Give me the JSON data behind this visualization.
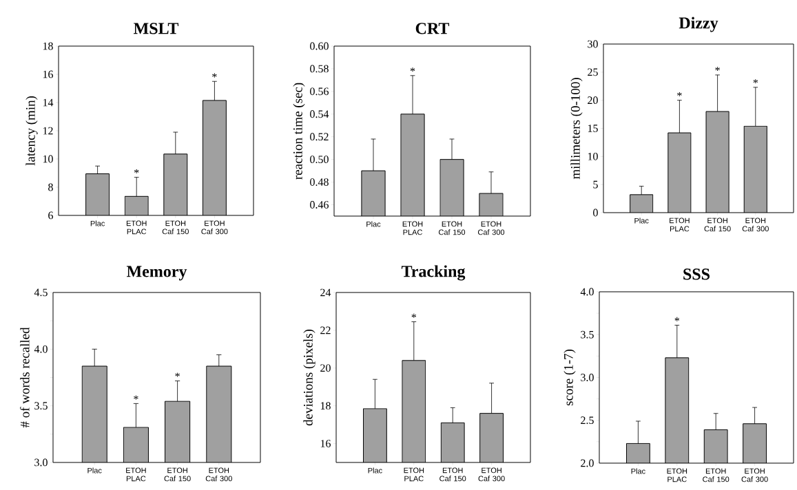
{
  "chart_data": [
    {
      "type": "bar",
      "title": "MSLT",
      "ylabel": "latency (min)",
      "categories": [
        "Plac",
        "ETOH PLAC",
        "ETOH Caf 150",
        "ETOH Caf 300"
      ],
      "values": [
        8.95,
        7.35,
        10.35,
        14.15
      ],
      "errors": [
        [
          8.95,
          9.5
        ],
        [
          7.35,
          8.7
        ],
        [
          10.35,
          11.9
        ],
        [
          14.15,
          15.5
        ]
      ],
      "color": "#a0a0a0",
      "ylim": [
        6,
        18
      ],
      "yticks": [
        6,
        8,
        10,
        12,
        14,
        16,
        18
      ],
      "annotations": [
        {
          "text": "*",
          "x": "ETOH PLAC",
          "y": 8.7
        },
        {
          "text": "*",
          "x": "ETOH Caf 300",
          "y": 15.5
        }
      ]
    },
    {
      "type": "bar",
      "title": "CRT",
      "ylabel": "reaction time (sec)",
      "categories": [
        "Plac",
        "ETOH PLAC",
        "ETOH Caf 150",
        "ETOH Caf 300"
      ],
      "values": [
        0.49,
        0.54,
        0.5,
        0.47
      ],
      "errors": [
        [
          0.49,
          0.518
        ],
        [
          0.54,
          0.574
        ],
        [
          0.5,
          0.518
        ],
        [
          0.47,
          0.489
        ]
      ],
      "color": "#a0a0a0",
      "ylim": [
        0.45,
        0.6
      ],
      "yticks": [
        0.46,
        0.48,
        {
          "value": 0.5,
          "label": "0.50"
        },
        0.52,
        0.54,
        0.56,
        0.58,
        {
          "value": 0.6,
          "label": "0.60"
        }
      ],
      "annotations": [
        {
          "text": "*",
          "x": "ETOH PLAC",
          "y": 0.574
        }
      ]
    },
    {
      "type": "bar",
      "title": "Dizzy",
      "ylabel": "millimeters (0-100)",
      "categories": [
        "Plac",
        "ETOH PLAC",
        "ETOH Caf 150",
        "ETOH Caf 300"
      ],
      "values": [
        3.2,
        14.2,
        18.0,
        15.4
      ],
      "errors": [
        [
          3.2,
          4.7
        ],
        [
          14.2,
          20.0
        ],
        [
          18.0,
          24.5
        ],
        [
          15.4,
          22.3
        ]
      ],
      "color": "#a0a0a0",
      "ylim": [
        0,
        30
      ],
      "yticks": [
        0,
        5,
        10,
        15,
        20,
        25,
        30
      ],
      "annotations": [
        {
          "text": "*",
          "x": "ETOH PLAC",
          "y": 20.0
        },
        {
          "text": "*",
          "x": "ETOH Caf 150",
          "y": 24.5
        },
        {
          "text": "*",
          "x": "ETOH Caf 300",
          "y": 22.3
        }
      ]
    },
    {
      "type": "bar",
      "title": "Memory",
      "ylabel": "# of words recalled",
      "categories": [
        "Plac",
        "ETOH PLAC",
        "ETOH Caf 150",
        "ETOH Caf 300"
      ],
      "values": [
        3.85,
        3.31,
        3.54,
        3.85
      ],
      "errors": [
        [
          3.85,
          4.0
        ],
        [
          3.31,
          3.52
        ],
        [
          3.54,
          3.72
        ],
        [
          3.85,
          3.95
        ]
      ],
      "color": "#a0a0a0",
      "ylim": [
        3.0,
        4.5
      ],
      "yticks": [
        {
          "value": 3,
          "label": "3.0"
        },
        {
          "value": 3.25,
          "label": null
        },
        3.5,
        {
          "value": 3.75,
          "label": null
        },
        {
          "value": 4,
          "label": "4.0"
        },
        {
          "value": 4.25,
          "label": null
        },
        4.5
      ],
      "annotations": [
        {
          "text": "*",
          "x": "ETOH PLAC",
          "y": 3.52
        },
        {
          "text": "*",
          "x": "ETOH Caf 150",
          "y": 3.72
        }
      ]
    },
    {
      "type": "bar",
      "title": "Tracking",
      "ylabel": "deviations (pixels)",
      "categories": [
        "Plac",
        "ETOH PLAC",
        "ETOH Caf 150",
        "ETOH Caf 300"
      ],
      "values": [
        17.85,
        20.4,
        17.1,
        17.6
      ],
      "errors": [
        [
          17.85,
          19.4
        ],
        [
          20.4,
          22.45
        ],
        [
          17.1,
          17.9
        ],
        [
          17.6,
          19.2
        ]
      ],
      "color": "#a0a0a0",
      "ylim": [
        15,
        24
      ],
      "yticks": [
        16,
        18,
        20,
        22,
        24
      ],
      "annotations": [
        {
          "text": "*",
          "x": "ETOH PLAC",
          "y": 22.45
        }
      ]
    },
    {
      "type": "bar",
      "title": "SSS",
      "ylabel": "score (1-7)",
      "categories": [
        "Plac",
        "ETOH PLAC",
        "ETOH Caf 150",
        "ETOH Caf 300"
      ],
      "values": [
        2.23,
        3.23,
        2.39,
        2.46
      ],
      "errors": [
        [
          2.23,
          2.49
        ],
        [
          3.23,
          3.61
        ],
        [
          2.39,
          2.58
        ],
        [
          2.46,
          2.65
        ]
      ],
      "color": "#a0a0a0",
      "ylim": [
        2.0,
        4.0
      ],
      "yticks": [
        {
          "value": 2,
          "label": "2.0"
        },
        {
          "value": 2.25,
          "label": null
        },
        2.5,
        {
          "value": 2.75,
          "label": null
        },
        {
          "value": 3,
          "label": "3.0"
        },
        {
          "value": 3.25,
          "label": null
        },
        3.5,
        {
          "value": 3.75,
          "label": null
        },
        {
          "value": 4,
          "label": "4.0"
        }
      ],
      "annotations": [
        {
          "text": "*",
          "x": "ETOH PLAC",
          "y": 3.61
        }
      ]
    }
  ]
}
